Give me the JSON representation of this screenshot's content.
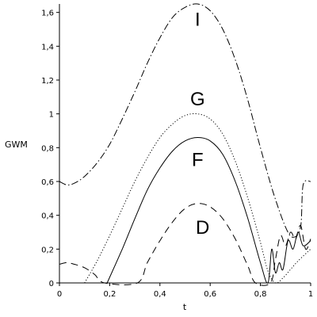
{
  "chart_data": {
    "type": "line",
    "xlabel": "t",
    "ylabel": "GWM",
    "xlim": [
      0,
      1
    ],
    "ylim": [
      0,
      1.65
    ],
    "grid": false,
    "legend": "none",
    "x_ticks": [
      {
        "value": 0,
        "label": "0"
      },
      {
        "value": 0.2,
        "label": "0,2"
      },
      {
        "value": 0.4,
        "label": "0,4"
      },
      {
        "value": 0.6,
        "label": "0,6"
      },
      {
        "value": 0.8,
        "label": "0,8"
      },
      {
        "value": 1,
        "label": "1"
      }
    ],
    "y_ticks": [
      {
        "value": 0,
        "label": "0"
      },
      {
        "value": 0.2,
        "label": "0,2"
      },
      {
        "value": 0.4,
        "label": "0,4"
      },
      {
        "value": 0.6,
        "label": "0,6"
      },
      {
        "value": 0.8,
        "label": "0,8"
      },
      {
        "value": 1,
        "label": "1"
      },
      {
        "value": 1.2,
        "label": "1,2"
      },
      {
        "value": 1.4,
        "label": "1,4"
      },
      {
        "value": 1.6,
        "label": "1,6"
      }
    ],
    "series": [
      {
        "name": "I",
        "dash": "dashdot",
        "label_at": [
          0.55,
          1.55
        ],
        "x": [
          0,
          0.03,
          0.06,
          0.1,
          0.15,
          0.2,
          0.25,
          0.3,
          0.35,
          0.4,
          0.45,
          0.5,
          0.55,
          0.6,
          0.65,
          0.7,
          0.75,
          0.8,
          0.85,
          0.9,
          0.93,
          0.96,
          0.97,
          1.0
        ],
        "values": [
          0.6,
          0.58,
          0.59,
          0.63,
          0.71,
          0.82,
          0.97,
          1.13,
          1.3,
          1.45,
          1.57,
          1.63,
          1.65,
          1.61,
          1.5,
          1.32,
          1.08,
          0.8,
          0.54,
          0.33,
          0.27,
          0.33,
          0.58,
          0.6
        ]
      },
      {
        "name": "G",
        "dash": "dotted",
        "label_at": [
          0.55,
          1.08
        ],
        "x": [
          0.1,
          0.15,
          0.2,
          0.25,
          0.3,
          0.35,
          0.4,
          0.45,
          0.5,
          0.55,
          0.6,
          0.65,
          0.7,
          0.75,
          0.8,
          0.83,
          0.86,
          0.89,
          0.92,
          0.95,
          1.0
        ],
        "values": [
          0,
          0.13,
          0.28,
          0.44,
          0.6,
          0.74,
          0.86,
          0.94,
          0.99,
          1.0,
          0.97,
          0.88,
          0.72,
          0.5,
          0.24,
          0.07,
          0,
          0.03,
          0.08,
          0.13,
          0.2
        ]
      },
      {
        "name": "F",
        "dash": "solid",
        "label_at": [
          0.55,
          0.72
        ],
        "x": [
          0.19,
          0.25,
          0.3,
          0.35,
          0.4,
          0.45,
          0.5,
          0.55,
          0.6,
          0.65,
          0.7,
          0.75,
          0.8,
          0.83,
          0.845,
          0.86,
          0.875,
          0.89,
          0.91,
          0.93,
          0.95,
          0.97,
          1.0
        ],
        "values": [
          0,
          0.2,
          0.38,
          0.55,
          0.68,
          0.78,
          0.84,
          0.86,
          0.84,
          0.76,
          0.6,
          0.38,
          0.12,
          0,
          0.2,
          0.06,
          0.12,
          0.08,
          0.25,
          0.2,
          0.3,
          0.22,
          0.25
        ]
      },
      {
        "name": "D",
        "dash": "dashed",
        "label_at": [
          0.57,
          0.32
        ],
        "x": [
          0,
          0.03,
          0.06,
          0.1,
          0.14,
          0.18,
          0.31,
          0.35,
          0.4,
          0.45,
          0.5,
          0.55,
          0.6,
          0.65,
          0.7,
          0.75,
          0.78,
          0.84,
          0.86,
          0.88,
          0.9,
          0.92,
          0.94,
          0.96,
          0.98,
          1.0
        ],
        "values": [
          0.11,
          0.12,
          0.11,
          0.09,
          0.05,
          0,
          0,
          0.12,
          0.25,
          0.36,
          0.44,
          0.47,
          0.45,
          0.38,
          0.26,
          0.1,
          0,
          0,
          0.14,
          0.28,
          0.22,
          0.3,
          0.26,
          0.34,
          0.2,
          0.26
        ]
      }
    ]
  }
}
